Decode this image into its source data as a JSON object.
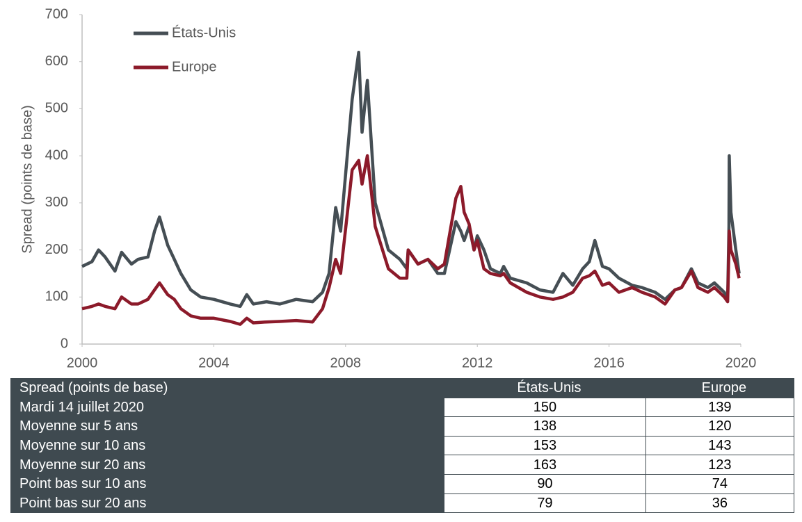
{
  "chart_data": {
    "type": "line",
    "ylabel": "Spread (points de base)",
    "x": [
      2000,
      2000.3,
      2000.5,
      2000.7,
      2001,
      2001.2,
      2001.5,
      2001.7,
      2002,
      2002.2,
      2002.35,
      2002.6,
      2002.8,
      2003,
      2003.3,
      2003.6,
      2004,
      2004.5,
      2004.8,
      2005,
      2005.2,
      2005.6,
      2006,
      2006.5,
      2007,
      2007.3,
      2007.5,
      2007.7,
      2007.85,
      2008.2,
      2008.4,
      2008.5,
      2008.66,
      2008.9,
      2009.3,
      2009.65,
      2009.86,
      2009.9,
      2010.2,
      2010.5,
      2010.8,
      2011,
      2011.35,
      2011.5,
      2011.6,
      2011.75,
      2011.9,
      2012,
      2012.2,
      2012.4,
      2012.7,
      2012.8,
      2013,
      2013.5,
      2013.9,
      2014.3,
      2014.6,
      2014.9,
      2015.2,
      2015.4,
      2015.57,
      2015.8,
      2016,
      2016.3,
      2016.7,
      2017,
      2017.4,
      2017.7,
      2018,
      2018.2,
      2018.5,
      2018.7,
      2019,
      2019.2,
      2019.5,
      2019.6,
      2019.64,
      2019.65,
      2019.7,
      2019.85,
      2019.95
    ],
    "series": [
      {
        "name": "États-Unis",
        "color": "#454e54",
        "values": [
          165,
          175,
          200,
          185,
          155,
          195,
          170,
          180,
          185,
          240,
          270,
          210,
          180,
          150,
          115,
          100,
          95,
          85,
          80,
          105,
          85,
          90,
          85,
          95,
          90,
          110,
          150,
          290,
          240,
          520,
          620,
          450,
          560,
          300,
          200,
          180,
          160,
          200,
          170,
          180,
          150,
          150,
          260,
          240,
          220,
          250,
          200,
          230,
          200,
          160,
          150,
          165,
          140,
          130,
          115,
          110,
          150,
          125,
          160,
          175,
          220,
          165,
          160,
          140,
          125,
          120,
          110,
          95,
          115,
          120,
          160,
          130,
          120,
          130,
          110,
          95,
          250,
          400,
          280,
          200,
          150
        ]
      },
      {
        "name": "Europe",
        "color": "#8c1a2a",
        "values": [
          75,
          80,
          85,
          80,
          75,
          100,
          85,
          85,
          95,
          115,
          130,
          105,
          95,
          75,
          60,
          55,
          55,
          48,
          42,
          55,
          45,
          47,
          48,
          50,
          47,
          75,
          120,
          180,
          150,
          370,
          390,
          340,
          400,
          250,
          160,
          140,
          140,
          200,
          170,
          180,
          160,
          170,
          310,
          335,
          280,
          255,
          200,
          220,
          160,
          150,
          145,
          150,
          130,
          110,
          100,
          95,
          100,
          110,
          140,
          145,
          155,
          125,
          130,
          110,
          120,
          110,
          100,
          85,
          115,
          120,
          155,
          120,
          110,
          120,
          100,
          90,
          200,
          240,
          200,
          170,
          140
        ]
      }
    ],
    "xlim": [
      2000,
      2020
    ],
    "xticks": [
      2000,
      2004,
      2008,
      2012,
      2016,
      2020
    ],
    "ylim": [
      0,
      700
    ],
    "yticks": [
      0,
      100,
      200,
      300,
      400,
      500,
      600,
      700
    ],
    "grid": false,
    "legend": "top-left"
  },
  "table": {
    "header": [
      "Spread (points de base)",
      "États-Unis",
      "Europe"
    ],
    "rows": [
      [
        "Mardi 14 juillet 2020",
        150,
        139
      ],
      [
        "Moyenne sur 5 ans",
        138,
        120
      ],
      [
        "Moyenne sur 10 ans",
        153,
        143
      ],
      [
        "Moyenne sur 20 ans",
        163,
        123
      ],
      [
        "Point bas sur 10 ans",
        90,
        74
      ],
      [
        "Point bas sur 20 ans",
        79,
        36
      ]
    ]
  }
}
